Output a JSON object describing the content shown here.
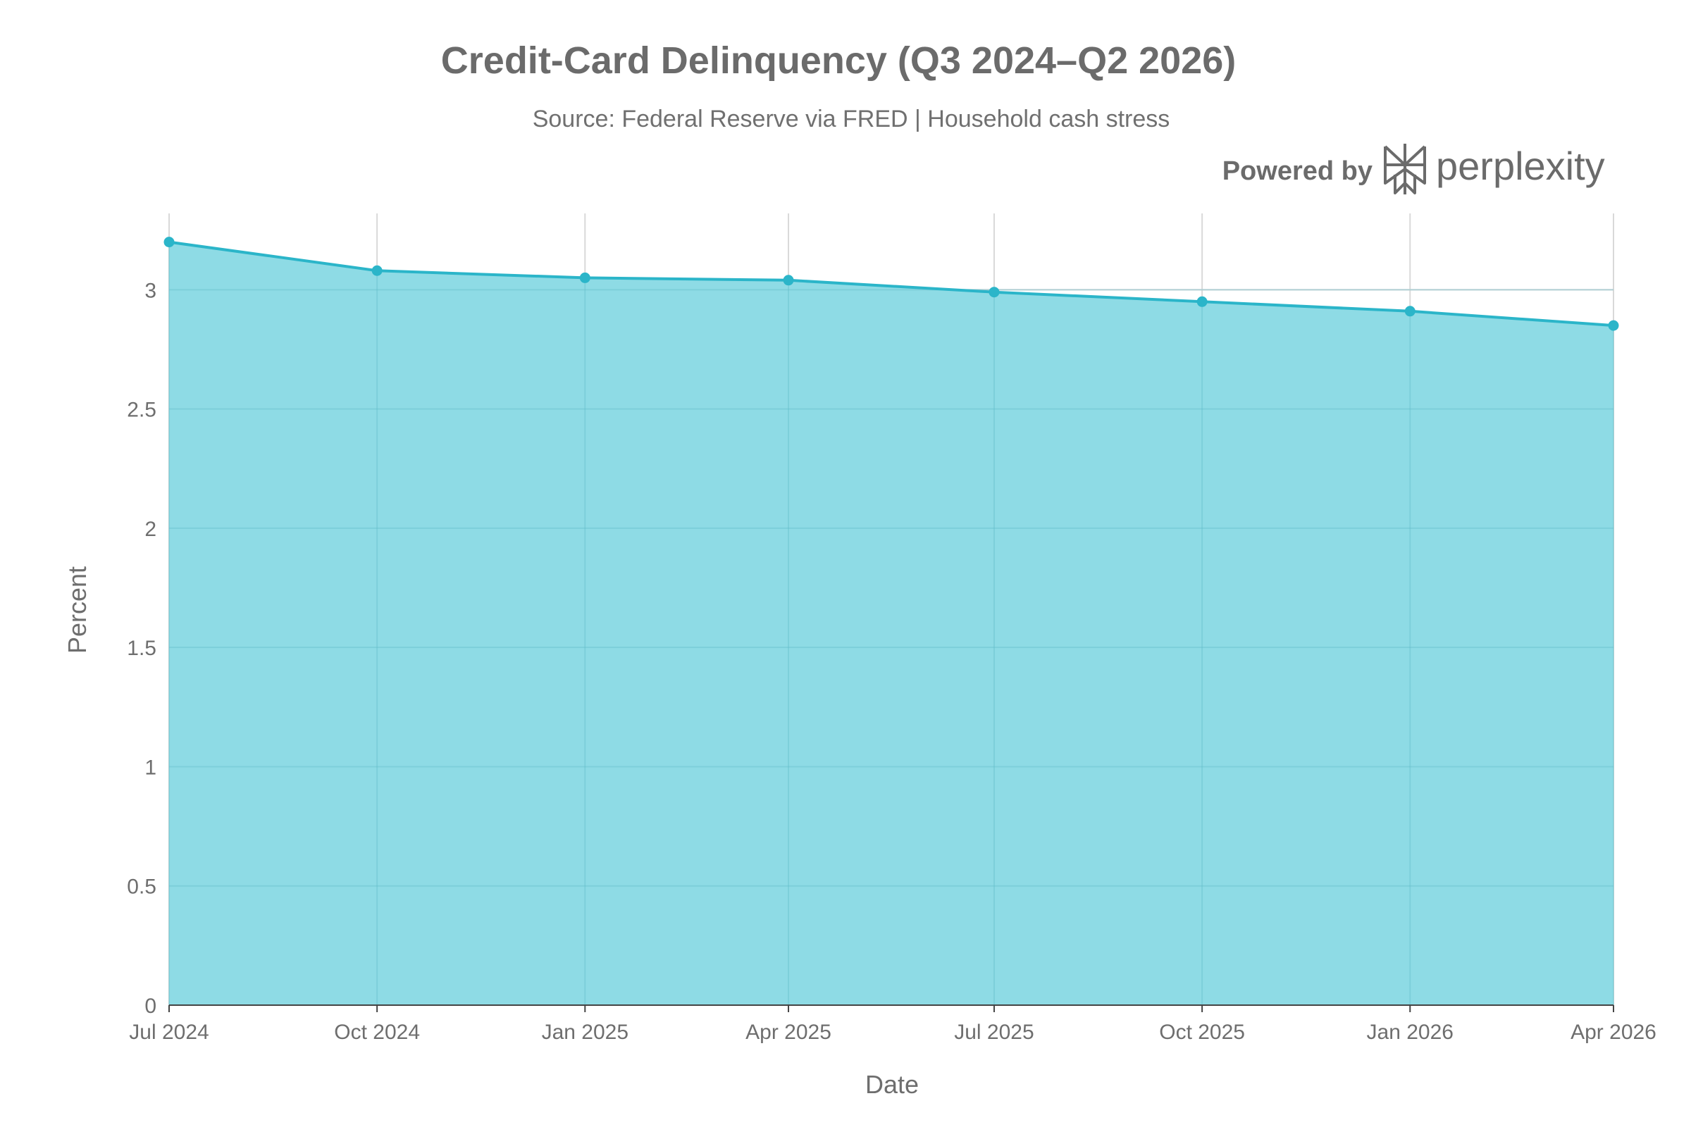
{
  "chart_data": {
    "type": "area",
    "title": "Credit-Card Delinquency (Q3 2024–Q2 2026)",
    "subtitle": "Source: Federal Reserve via FRED | Household cash stress",
    "xlabel": "Date",
    "ylabel": "Percent",
    "x": [
      "2024-07-01",
      "2024-10-01",
      "2025-01-01",
      "2025-04-01",
      "2025-07-01",
      "2025-10-01",
      "2026-01-01",
      "2026-04-01"
    ],
    "x_tick_labels": [
      "Jul 2024",
      "Oct 2024",
      "Jan 2025",
      "Apr 2025",
      "Jul 2025",
      "Oct 2025",
      "Jan 2026",
      "Apr 2026"
    ],
    "values": [
      3.2,
      3.08,
      3.05,
      3.04,
      2.99,
      2.95,
      2.91,
      2.85
    ],
    "ylim": [
      0,
      3.32
    ],
    "y_ticks": [
      0,
      0.5,
      1,
      1.5,
      2,
      2.5,
      3
    ],
    "y_tick_labels": [
      "0",
      "0.5",
      "1",
      "1.5",
      "2",
      "2.5",
      "3"
    ],
    "grid": true,
    "colors": {
      "line": "#2bb5c9",
      "fill": "#8edbe5",
      "grid": "#d9d9d9"
    }
  },
  "branding": {
    "prefix": "Powered by",
    "name": "perplexity",
    "icon": "perplexity-logo-icon"
  }
}
